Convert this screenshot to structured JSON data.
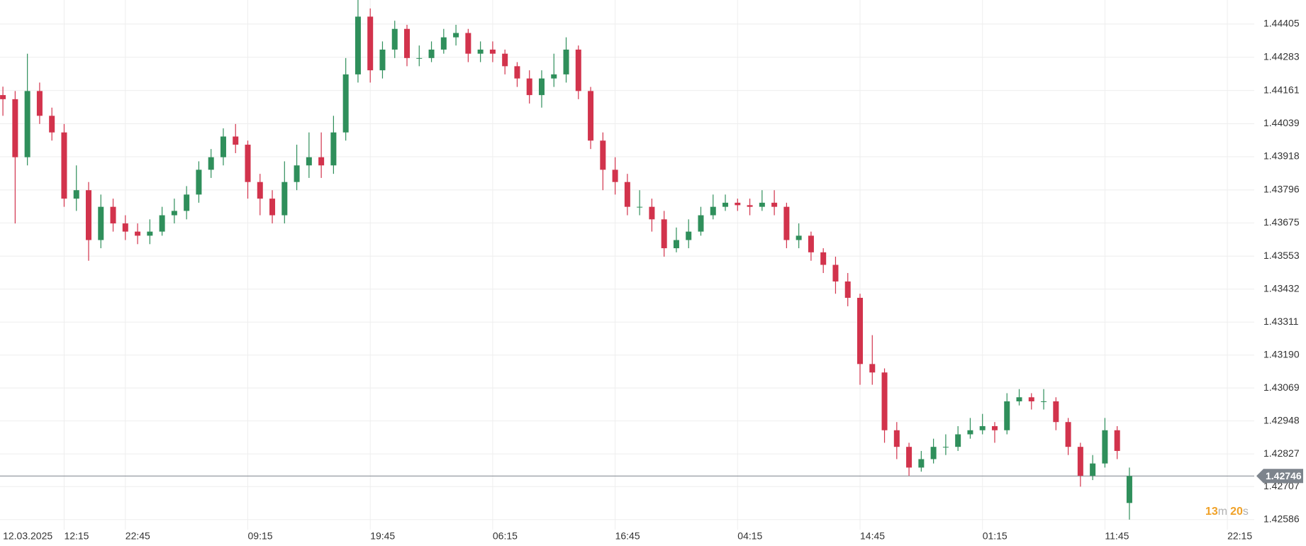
{
  "chart_data": {
    "type": "candlestick",
    "categories": [
      "12.03.2025",
      null,
      null,
      null,
      null,
      "12:15",
      null,
      null,
      null,
      null,
      "22:45",
      null,
      null,
      null,
      null,
      null,
      null,
      null,
      null,
      null,
      "09:15",
      null,
      null,
      null,
      null,
      null,
      null,
      null,
      null,
      null,
      "19:45",
      null,
      null,
      null,
      null,
      null,
      null,
      null,
      null,
      null,
      "06:15",
      null,
      null,
      null,
      null,
      null,
      null,
      null,
      null,
      null,
      "16:45",
      null,
      null,
      null,
      null,
      null,
      null,
      null,
      null,
      null,
      "04:15",
      null,
      null,
      null,
      null,
      null,
      null,
      null,
      null,
      null,
      "14:45",
      null,
      null,
      null,
      null,
      null,
      null,
      null,
      null,
      null,
      "01:15",
      null,
      null,
      null,
      null,
      null,
      null,
      null,
      null,
      null,
      "11:45",
      null,
      null,
      null,
      null,
      null,
      null,
      null,
      null,
      null,
      "22:15"
    ],
    "open": [
      1.44144,
      1.44129,
      1.43916,
      1.44159,
      1.44068,
      1.44007,
      1.43764,
      1.43795,
      1.43612,
      1.43734,
      1.43673,
      1.43643,
      1.43628,
      1.43643,
      1.43703,
      1.43719,
      1.43779,
      1.4387,
      1.43916,
      1.43992,
      1.43962,
      1.43825,
      1.43764,
      1.43703,
      1.43825,
      1.43886,
      1.43916,
      1.43886,
      1.44007,
      1.4422,
      1.44432,
      1.44235,
      1.44311,
      1.44387,
      1.4428,
      1.4428,
      1.44311,
      1.44356,
      1.44372,
      1.44296,
      1.44311,
      1.44296,
      1.4425,
      1.44205,
      1.44144,
      1.44205,
      1.4422,
      1.44311,
      1.44159,
      1.43977,
      1.4387,
      1.43825,
      1.43734,
      1.43734,
      1.43688,
      1.43582,
      1.43612,
      1.43643,
      1.43703,
      1.43734,
      1.43749,
      1.4374,
      1.43734,
      1.43749,
      1.43734,
      1.43612,
      1.43628,
      1.43567,
      1.43521,
      1.4346,
      1.434,
      1.43157,
      1.43126,
      1.42914,
      1.42853,
      1.42777,
      1.42808,
      1.42853,
      1.42853,
      1.42899,
      1.42914,
      1.42929,
      1.42914,
      1.4302,
      1.43035,
      1.4302,
      1.4302,
      1.42944,
      1.42853,
      1.42747,
      1.42792,
      1.42914,
      1.42647,
      null,
      null,
      null,
      null,
      null,
      null,
      null,
      null
    ],
    "high": [
      1.44175,
      1.44159,
      1.44296,
      1.4419,
      1.44098,
      1.44038,
      1.43886,
      1.43825,
      1.43779,
      1.43764,
      1.43703,
      1.43673,
      1.43688,
      1.43734,
      1.43764,
      1.4381,
      1.43901,
      1.43946,
      1.44022,
      1.44038,
      1.43977,
      1.43855,
      1.43795,
      1.43901,
      1.43962,
      1.44007,
      1.44007,
      1.44068,
      1.4428,
      1.44493,
      1.44462,
      1.44341,
      1.44417,
      1.44402,
      1.44326,
      1.44341,
      1.44387,
      1.44402,
      1.44387,
      1.44341,
      1.44341,
      1.44311,
      1.44265,
      1.44235,
      1.44235,
      1.44296,
      1.44356,
      1.44326,
      1.44174,
      1.44007,
      1.43916,
      1.43855,
      1.43795,
      1.43764,
      1.43719,
      1.43658,
      1.43688,
      1.43734,
      1.43779,
      1.43779,
      1.43764,
      1.43764,
      1.43795,
      1.43795,
      1.43749,
      1.43673,
      1.43643,
      1.43582,
      1.43551,
      1.43491,
      1.43415,
      1.43263,
      1.43141,
      1.42944,
      1.42868,
      1.42838,
      1.42883,
      1.42899,
      1.42929,
      1.42959,
      1.42974,
      1.42944,
      1.4305,
      1.43065,
      1.4305,
      1.43065,
      1.43035,
      1.42959,
      1.42868,
      1.42823,
      1.42959,
      1.42929,
      1.42777,
      null,
      null,
      null,
      null,
      null,
      null,
      null,
      null
    ],
    "low": [
      1.44068,
      1.43673,
      1.43886,
      1.44038,
      1.43977,
      1.43734,
      1.43719,
      1.43536,
      1.43582,
      1.43643,
      1.43612,
      1.43597,
      1.43597,
      1.43628,
      1.43673,
      1.43688,
      1.43749,
      1.4384,
      1.43886,
      1.43931,
      1.43764,
      1.43703,
      1.43673,
      1.43673,
      1.43795,
      1.4384,
      1.4384,
      1.43855,
      1.43977,
      1.4419,
      1.4419,
      1.44205,
      1.4428,
      1.4425,
      1.4425,
      1.44265,
      1.44296,
      1.44326,
      1.44265,
      1.44265,
      1.44265,
      1.4422,
      1.44174,
      1.44113,
      1.44098,
      1.44174,
      1.4419,
      1.44129,
      1.43946,
      1.43795,
      1.43779,
      1.43703,
      1.43703,
      1.43643,
      1.43551,
      1.43567,
      1.43582,
      1.43628,
      1.43688,
      1.43719,
      1.43719,
      1.43703,
      1.43719,
      1.43703,
      1.43582,
      1.43582,
      1.43536,
      1.43491,
      1.43415,
      1.43369,
      1.43081,
      1.43081,
      1.42868,
      1.42808,
      1.42747,
      1.42762,
      1.42792,
      1.42823,
      1.42838,
      1.42883,
      1.42899,
      1.42868,
      1.42899,
      1.43005,
      1.4299,
      1.4299,
      1.42914,
      1.42823,
      1.42707,
      1.42731,
      1.42777,
      1.42808,
      1.42586,
      null,
      null,
      null,
      null,
      null,
      null,
      null,
      null
    ],
    "close": [
      1.44129,
      1.43916,
      1.44159,
      1.44068,
      1.44007,
      1.43764,
      1.43795,
      1.43612,
      1.43734,
      1.43673,
      1.43643,
      1.43628,
      1.43643,
      1.43703,
      1.43719,
      1.43779,
      1.4387,
      1.43916,
      1.43992,
      1.43962,
      1.43825,
      1.43764,
      1.43703,
      1.43825,
      1.43886,
      1.43916,
      1.43886,
      1.44007,
      1.4422,
      1.44432,
      1.44235,
      1.44311,
      1.44387,
      1.4428,
      1.4428,
      1.44311,
      1.44356,
      1.44372,
      1.44296,
      1.44311,
      1.44296,
      1.4425,
      1.44205,
      1.44144,
      1.44205,
      1.4422,
      1.44311,
      1.44159,
      1.43977,
      1.4387,
      1.43825,
      1.43734,
      1.43734,
      1.43688,
      1.43582,
      1.43612,
      1.43643,
      1.43703,
      1.43734,
      1.43749,
      1.4374,
      1.43734,
      1.43749,
      1.43734,
      1.43612,
      1.43628,
      1.43567,
      1.43521,
      1.4346,
      1.434,
      1.43157,
      1.43126,
      1.42914,
      1.42853,
      1.42777,
      1.42808,
      1.42853,
      1.42853,
      1.42899,
      1.42914,
      1.42929,
      1.42914,
      1.4302,
      1.43035,
      1.4302,
      1.4302,
      1.42944,
      1.42853,
      1.42747,
      1.42792,
      1.42914,
      1.42838,
      1.42746,
      null,
      null,
      null,
      null,
      null,
      null,
      null,
      null
    ],
    "up_color": "#2f8f5b",
    "down_color": "#d2334c",
    "ylim": [
      1.42549,
      1.44493
    ],
    "yticks": [
      1.44405,
      1.44283,
      1.44161,
      1.44039,
      1.43918,
      1.43796,
      1.43675,
      1.43553,
      1.43432,
      1.43311,
      {
        "value": 1.4319,
        "label": "1.43190"
      },
      1.43069,
      1.42948,
      1.42827,
      1.42707,
      1.42586
    ],
    "grid": true,
    "current_price": 1.42746,
    "countdown": [
      "13",
      "m",
      "20",
      "s"
    ]
  }
}
